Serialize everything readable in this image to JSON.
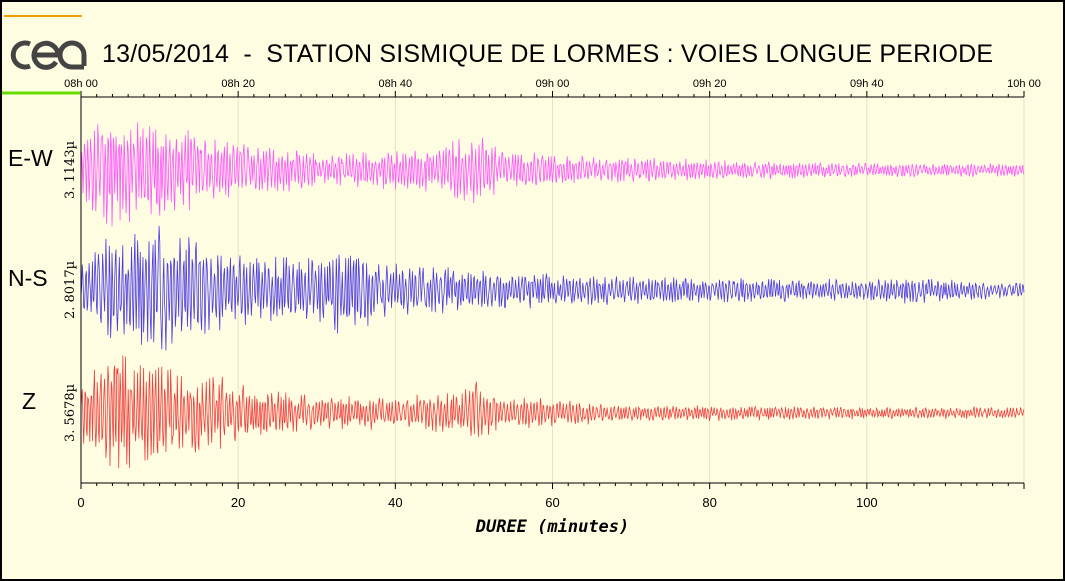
{
  "title": "13/05/2014  -  STATION SISMIQUE DE LORMES : VOIES LONGUE PERIODE",
  "logo": {
    "text": "cea",
    "line_colors": [
      "#f0a000",
      "#66dd00"
    ]
  },
  "chart_data": {
    "type": "line",
    "title": "13/05/2014  -  STATION SISMIQUE DE LORMES : VOIES LONGUE PERIODE",
    "xlabel": "DUREE (minutes)",
    "xlim": [
      0,
      120
    ],
    "bottom_ticks": [
      0,
      20,
      40,
      60,
      80,
      100
    ],
    "top_ticks": [
      "08h 00",
      "08h 20",
      "08h 40",
      "09h 00",
      "09h 20",
      "09h 40",
      "10h 00"
    ],
    "grid": true,
    "series": [
      {
        "name": "E-W",
        "amplitude": "3. 1143µ",
        "color": "#ff55ff",
        "envelope": [
          {
            "t": 0,
            "a": 0.35
          },
          {
            "t": 1,
            "a": 0.55
          },
          {
            "t": 3,
            "a": 1.0
          },
          {
            "t": 6,
            "a": 0.75
          },
          {
            "t": 10,
            "a": 0.7
          },
          {
            "t": 15,
            "a": 0.55
          },
          {
            "t": 20,
            "a": 0.4
          },
          {
            "t": 30,
            "a": 0.25
          },
          {
            "t": 40,
            "a": 0.28
          },
          {
            "t": 46,
            "a": 0.35
          },
          {
            "t": 50,
            "a": 0.55
          },
          {
            "t": 54,
            "a": 0.3
          },
          {
            "t": 60,
            "a": 0.22
          },
          {
            "t": 80,
            "a": 0.15
          },
          {
            "t": 100,
            "a": 0.1
          },
          {
            "t": 120,
            "a": 0.09
          }
        ]
      },
      {
        "name": "N-S",
        "amplitude": "2. 8017µ",
        "color": "#4b3ce6",
        "envelope": [
          {
            "t": 0,
            "a": 0.35
          },
          {
            "t": 2,
            "a": 0.75
          },
          {
            "t": 5,
            "a": 0.7
          },
          {
            "t": 8,
            "a": 0.95
          },
          {
            "t": 12,
            "a": 0.9
          },
          {
            "t": 20,
            "a": 0.5
          },
          {
            "t": 30,
            "a": 0.45
          },
          {
            "t": 34,
            "a": 0.7
          },
          {
            "t": 38,
            "a": 0.4
          },
          {
            "t": 50,
            "a": 0.3
          },
          {
            "t": 60,
            "a": 0.25
          },
          {
            "t": 80,
            "a": 0.18
          },
          {
            "t": 100,
            "a": 0.15
          },
          {
            "t": 105,
            "a": 0.2
          },
          {
            "t": 120,
            "a": 0.1
          }
        ]
      },
      {
        "name": "Z",
        "amplitude": "3. 5678µ",
        "color": "#f04040",
        "envelope": [
          {
            "t": 0,
            "a": 0.4
          },
          {
            "t": 1.5,
            "a": 0.6
          },
          {
            "t": 3,
            "a": 1.0
          },
          {
            "t": 7,
            "a": 0.75
          },
          {
            "t": 11,
            "a": 0.7
          },
          {
            "t": 20,
            "a": 0.45
          },
          {
            "t": 30,
            "a": 0.25
          },
          {
            "t": 40,
            "a": 0.25
          },
          {
            "t": 48,
            "a": 0.3
          },
          {
            "t": 50,
            "a": 0.5
          },
          {
            "t": 54,
            "a": 0.25
          },
          {
            "t": 70,
            "a": 0.12
          },
          {
            "t": 100,
            "a": 0.09
          },
          {
            "t": 120,
            "a": 0.08
          }
        ]
      }
    ]
  }
}
